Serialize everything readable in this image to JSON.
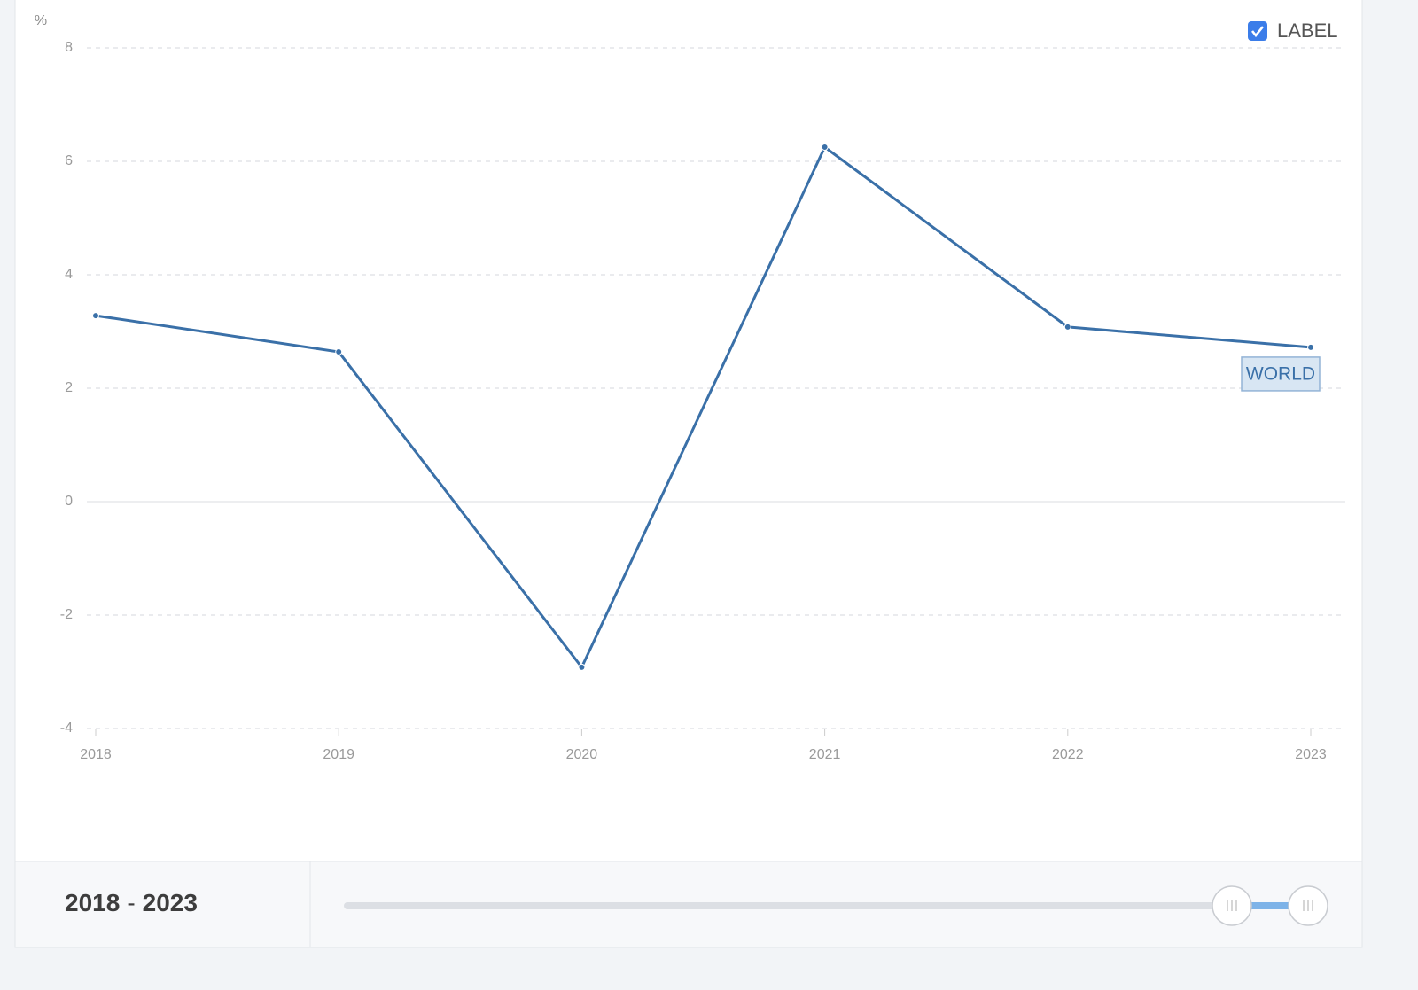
{
  "chart_data": {
    "type": "line",
    "y_unit": "%",
    "categories": [
      "2018",
      "2019",
      "2020",
      "2021",
      "2022",
      "2023"
    ],
    "series": [
      {
        "name": "WORLD",
        "color": "#3a70a8",
        "values": [
          3.28,
          2.64,
          -2.92,
          6.25,
          3.08,
          2.72
        ]
      }
    ],
    "ylim": [
      -4,
      8
    ],
    "yticks": [
      -4,
      -2,
      0,
      2,
      4,
      6,
      8
    ],
    "grid": true
  },
  "label_toggle": {
    "text": "LABEL",
    "checked": true
  },
  "range": {
    "start": "2018",
    "separator": "-",
    "end": "2023"
  }
}
